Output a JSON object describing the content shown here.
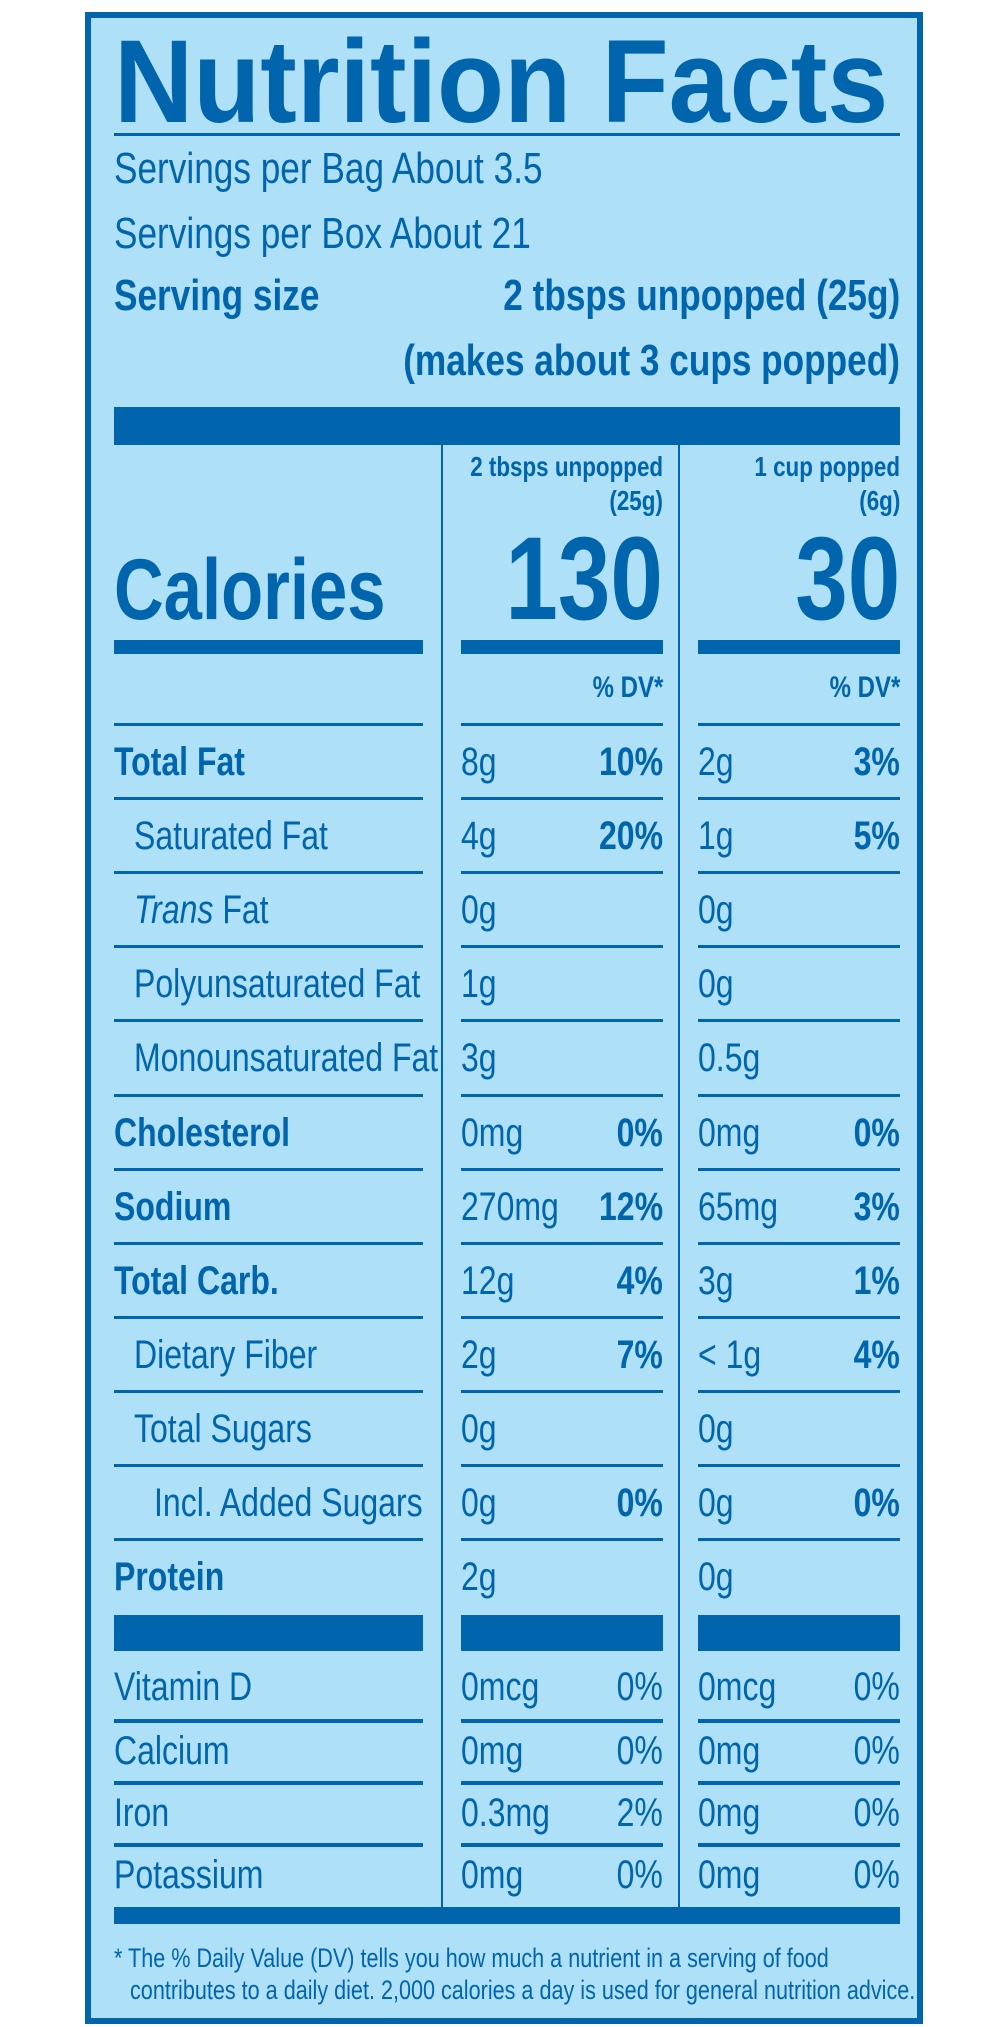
{
  "title": "Nutrition Facts",
  "servings_bag": "Servings per Bag About 3.5",
  "servings_box": "Servings per Box About 21",
  "serving_size_label": "Serving size",
  "serving_size_value": "2 tbsps unpopped (25g)",
  "serving_size_note": "(makes about 3 cups popped)",
  "columns": [
    {
      "header": "2 tbsps unpopped",
      "sub": "(25g)",
      "calories": "130",
      "dv_header": "% DV*"
    },
    {
      "header": "1 cup popped",
      "sub": "(6g)",
      "calories": "30",
      "dv_header": "% DV*"
    }
  ],
  "calories_label": "Calories",
  "nutrients": [
    {
      "label": "Total Fat",
      "bold": true,
      "indent": 0,
      "c1": "8g",
      "d1": "10%",
      "c2": "2g",
      "d2": "3%"
    },
    {
      "label": "Saturated Fat",
      "bold": false,
      "indent": 1,
      "c1": "4g",
      "d1": "20%",
      "c2": "1g",
      "d2": "5%"
    },
    {
      "label": "Fat",
      "italic_prefix": "Trans",
      "bold": false,
      "indent": 1,
      "c1": "0g",
      "d1": "",
      "c2": "0g",
      "d2": ""
    },
    {
      "label": "Polyunsaturated Fat",
      "bold": false,
      "indent": 1,
      "c1": "1g",
      "d1": "",
      "c2": "0g",
      "d2": ""
    },
    {
      "label": "Monounsaturated Fat",
      "bold": false,
      "indent": 1,
      "c1": "3g",
      "d1": "",
      "c2": "0.5g",
      "d2": ""
    },
    {
      "label": "Cholesterol",
      "bold": true,
      "indent": 0,
      "c1": "0mg",
      "d1": "0%",
      "c2": "0mg",
      "d2": "0%"
    },
    {
      "label": "Sodium",
      "bold": true,
      "indent": 0,
      "c1": "270mg",
      "d1": "12%",
      "c2": "65mg",
      "d2": "3%"
    },
    {
      "label": "Total Carb.",
      "bold": true,
      "indent": 0,
      "c1": "12g",
      "d1": "4%",
      "c2": "3g",
      "d2": "1%"
    },
    {
      "label": "Dietary Fiber",
      "bold": false,
      "indent": 1,
      "c1": "2g",
      "d1": "7%",
      "c2": "< 1g",
      "d2": "4%"
    },
    {
      "label": "Total Sugars",
      "bold": false,
      "indent": 1,
      "c1": "0g",
      "d1": "",
      "c2": "0g",
      "d2": ""
    },
    {
      "label": "Incl. Added Sugars",
      "bold": false,
      "indent": 2,
      "c1": "0g",
      "d1": "0%",
      "c2": "0g",
      "d2": "0%"
    },
    {
      "label": "Protein",
      "bold": true,
      "indent": 0,
      "c1": "2g",
      "d1": "",
      "c2": "0g",
      "d2": ""
    }
  ],
  "vitamins": [
    {
      "label": "Vitamin D",
      "c1": "0mcg",
      "d1": "0%",
      "c2": "0mcg",
      "d2": "0%"
    },
    {
      "label": "Calcium",
      "c1": "0mg",
      "d1": "0%",
      "c2": "0mg",
      "d2": "0%"
    },
    {
      "label": "Iron",
      "c1": "0.3mg",
      "d1": "2%",
      "c2": "0mg",
      "d2": "0%"
    },
    {
      "label": "Potassium",
      "c1": "0mg",
      "d1": "0%",
      "c2": "0mg",
      "d2": "0%"
    }
  ],
  "footnote_1": "* The % Daily Value (DV) tells you how much a nutrient in a serving of food",
  "footnote_2": "contributes to a daily diet. 2,000 calories a day is used for general nutrition advice.",
  "colors": {
    "background": "#aee0f8",
    "ink": "#0065ad"
  }
}
